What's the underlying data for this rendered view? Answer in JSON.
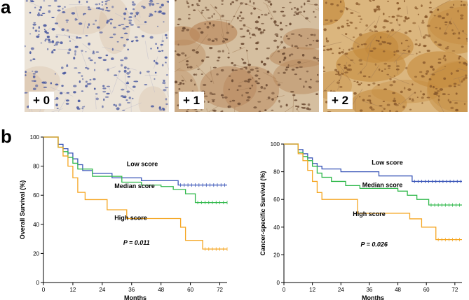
{
  "panel_a": {
    "letter": "a",
    "images": [
      {
        "label": "+ 0",
        "base": "#ece4d8",
        "nucleus": "#4b5aa0",
        "stain": "#c89a72"
      },
      {
        "label": "+ 1",
        "base": "#d5bfa0",
        "nucleus": "#6b4a32",
        "stain": "#b8875a"
      },
      {
        "label": "+ 2",
        "base": "#dbb67e",
        "nucleus": "#8a5a2c",
        "stain": "#c48a3c"
      }
    ]
  },
  "panel_b": {
    "letter": "b"
  },
  "chart_data": [
    {
      "type": "line",
      "step": true,
      "ylabel": "Overall Survival (%)",
      "xlabel": "Months",
      "xlim": [
        0,
        75
      ],
      "ylim": [
        0,
        100
      ],
      "xticks": [
        0,
        12,
        24,
        36,
        48,
        60,
        72
      ],
      "yticks": [
        0,
        20,
        40,
        60,
        80,
        100
      ],
      "annotation": "P = 0.011",
      "series": [
        {
          "name": "Low score",
          "color": "#3a56b8",
          "x": [
            0,
            6,
            8,
            10,
            12,
            14,
            16,
            20,
            28,
            40,
            55,
            75
          ],
          "y": [
            100,
            95,
            92,
            89,
            85,
            81,
            77,
            75,
            72,
            70,
            67,
            67
          ]
        },
        {
          "name": "Median score",
          "color": "#2fb84a",
          "x": [
            0,
            6,
            8,
            10,
            12,
            14,
            20,
            32,
            40,
            48,
            53,
            58,
            62,
            75
          ],
          "y": [
            100,
            93,
            90,
            86,
            82,
            78,
            73,
            69,
            67,
            66,
            64,
            61,
            55,
            55
          ]
        },
        {
          "name": "High score",
          "color": "#f5a623",
          "x": [
            0,
            6,
            8,
            10,
            12,
            14,
            17,
            26,
            34,
            52,
            56,
            58,
            65,
            75
          ],
          "y": [
            100,
            93,
            87,
            80,
            72,
            62,
            57,
            50,
            44,
            44,
            38,
            29,
            23,
            23
          ]
        }
      ]
    },
    {
      "type": "line",
      "step": true,
      "ylabel": "Cancer-specific Survival (%)",
      "xlabel": "Months",
      "xlim": [
        0,
        75
      ],
      "ylim": [
        0,
        100
      ],
      "xticks": [
        0,
        12,
        24,
        36,
        48,
        60,
        72
      ],
      "yticks": [
        0,
        20,
        40,
        60,
        80,
        100
      ],
      "annotation": "P = 0.026",
      "series": [
        {
          "name": "Low score",
          "color": "#3a56b8",
          "x": [
            0,
            6,
            8,
            10,
            12,
            14,
            16,
            24,
            40,
            54,
            75
          ],
          "y": [
            100,
            96,
            93,
            90,
            86,
            84,
            82,
            80,
            77,
            73,
            73
          ]
        },
        {
          "name": "Median score",
          "color": "#2fb84a",
          "x": [
            0,
            6,
            8,
            10,
            12,
            14,
            16,
            20,
            26,
            32,
            36,
            48,
            52,
            56,
            61,
            75
          ],
          "y": [
            100,
            94,
            91,
            88,
            84,
            79,
            76,
            73,
            70,
            68,
            68,
            66,
            63,
            60,
            56,
            56
          ]
        },
        {
          "name": "High score",
          "color": "#f5a623",
          "x": [
            0,
            6,
            8,
            10,
            12,
            14,
            16,
            21,
            31,
            49,
            53,
            58,
            64,
            75
          ],
          "y": [
            100,
            93,
            88,
            81,
            73,
            65,
            60,
            60,
            50,
            50,
            46,
            40,
            31,
            31
          ]
        }
      ]
    }
  ]
}
